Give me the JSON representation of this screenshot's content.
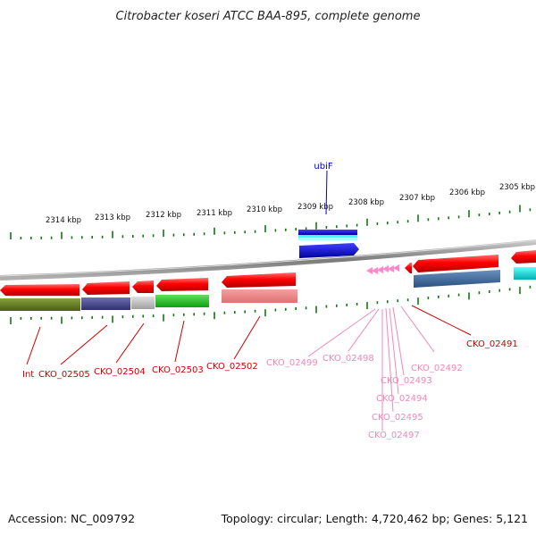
{
  "title": "Citrobacter koseri ATCC BAA-895, complete genome",
  "footer": {
    "accession": "Accession: NC_009792",
    "summary": "Topology: circular; Length: 4,720,462 bp; Genes: 5,121"
  },
  "tick_labels": [
    "2314 kbp",
    "2313 kbp",
    "2312 kbp",
    "2311 kbp",
    "2310 kbp",
    "2309 kbp",
    "2308 kbp",
    "2307 kbp",
    "2306 kbp",
    "2305 kbp"
  ],
  "gene_labels": [
    {
      "id": "ubiF",
      "text": "ubiF",
      "color": "#0000cc"
    },
    {
      "id": "int",
      "text": "Int",
      "color": "#cc0000"
    },
    {
      "id": "cko02505",
      "text": "CKO_02505",
      "color": "#cc0000"
    },
    {
      "id": "cko02504",
      "text": "CKO_02504",
      "color": "#cc0000"
    },
    {
      "id": "cko02503",
      "text": "CKO_02503",
      "color": "#cc0000"
    },
    {
      "id": "cko02502",
      "text": "CKO_02502",
      "color": "#cc0000"
    },
    {
      "id": "cko02499",
      "text": "CKO_02499",
      "color": "#ee88bb"
    },
    {
      "id": "cko02498",
      "text": "CKO_02498",
      "color": "#ee88bb"
    },
    {
      "id": "cko02492",
      "text": "CKO_02492",
      "color": "#ee88bb"
    },
    {
      "id": "cko02491",
      "text": "CKO_02491",
      "color": "#cc0000"
    },
    {
      "id": "cko02493",
      "text": "CKO_02493",
      "color": "#ee88bb"
    },
    {
      "id": "cko02494",
      "text": "CKO_02494",
      "color": "#ee88bb"
    },
    {
      "id": "cko02495",
      "text": "CKO_02495",
      "color": "#ee88bb"
    },
    {
      "id": "cko02497",
      "text": "CKO_02497",
      "color": "#ee88bb"
    }
  ],
  "colors": {
    "backbone": "#8a8a8a",
    "tick": "#117711",
    "gene_forward": "#ff0000",
    "gene_reverse": "#ff0000",
    "ubiF": "#0000dd",
    "pseudo": "#ee88bb"
  }
}
